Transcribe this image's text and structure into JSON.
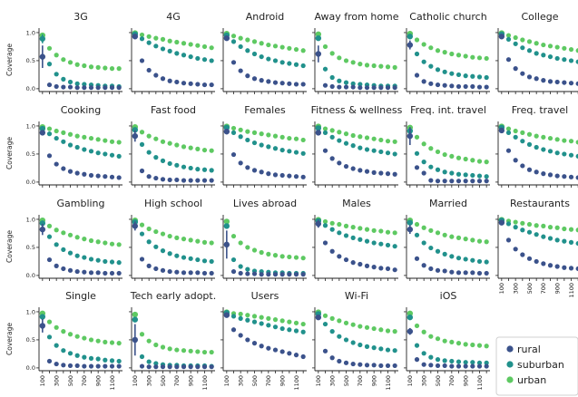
{
  "figure": {
    "legend": {
      "entries": [
        {
          "label": "rural",
          "color": "#3b528b"
        },
        {
          "label": "suburban",
          "color": "#21918c"
        },
        {
          "label": "urban",
          "color": "#5ec962"
        }
      ]
    }
  },
  "chart_data": {
    "type": "scatter",
    "ylabel": "Coverage",
    "x": [
      100,
      200,
      300,
      400,
      500,
      600,
      700,
      800,
      900,
      1000,
      1100,
      1200
    ],
    "xticks": [
      100,
      300,
      500,
      700,
      900,
      1100
    ],
    "yticks": [
      0.0,
      0.5,
      1.0
    ],
    "ylim": [
      -0.05,
      1.08
    ],
    "xlim": [
      50,
      1250
    ],
    "series_names": [
      "rural",
      "suburban",
      "urban"
    ],
    "panels": [
      {
        "title": "3G",
        "rural": [
          0.57,
          0.07,
          0.04,
          0.03,
          0.03,
          0.02,
          0.02,
          0.02,
          0.02,
          0.02,
          0.02,
          0.02
        ],
        "suburban": [
          0.89,
          0.44,
          0.26,
          0.17,
          0.12,
          0.09,
          0.08,
          0.07,
          0.06,
          0.05,
          0.05,
          0.04
        ],
        "urban": [
          0.95,
          0.72,
          0.6,
          0.52,
          0.47,
          0.43,
          0.41,
          0.39,
          0.38,
          0.37,
          0.36,
          0.36
        ],
        "rural_err": 0.2,
        "suburban_err": 0.08
      },
      {
        "title": "4G",
        "rural": [
          0.93,
          0.5,
          0.33,
          0.24,
          0.18,
          0.14,
          0.12,
          0.1,
          0.09,
          0.08,
          0.07,
          0.07
        ],
        "suburban": [
          0.97,
          0.89,
          0.82,
          0.76,
          0.71,
          0.67,
          0.63,
          0.6,
          0.57,
          0.54,
          0.52,
          0.5
        ],
        "urban": [
          0.99,
          0.96,
          0.93,
          0.9,
          0.88,
          0.85,
          0.83,
          0.81,
          0.79,
          0.77,
          0.75,
          0.73
        ]
      },
      {
        "title": "Android",
        "rural": [
          0.9,
          0.47,
          0.32,
          0.23,
          0.18,
          0.15,
          0.13,
          0.11,
          0.1,
          0.09,
          0.08,
          0.08
        ],
        "suburban": [
          0.95,
          0.84,
          0.75,
          0.68,
          0.62,
          0.57,
          0.53,
          0.5,
          0.47,
          0.45,
          0.43,
          0.41
        ],
        "urban": [
          0.98,
          0.94,
          0.9,
          0.87,
          0.84,
          0.81,
          0.78,
          0.76,
          0.74,
          0.72,
          0.7,
          0.68
        ]
      },
      {
        "title": "Away from home",
        "rural": [
          0.62,
          0.06,
          0.04,
          0.03,
          0.03,
          0.03,
          0.02,
          0.02,
          0.02,
          0.02,
          0.02,
          0.02
        ],
        "suburban": [
          0.9,
          0.35,
          0.2,
          0.14,
          0.11,
          0.09,
          0.08,
          0.07,
          0.06,
          0.05,
          0.05,
          0.05
        ],
        "urban": [
          0.97,
          0.75,
          0.63,
          0.55,
          0.5,
          0.47,
          0.44,
          0.42,
          0.41,
          0.4,
          0.39,
          0.38
        ],
        "rural_err": 0.15
      },
      {
        "title": "Catholic church",
        "rural": [
          0.78,
          0.24,
          0.13,
          0.09,
          0.07,
          0.06,
          0.05,
          0.04,
          0.04,
          0.04,
          0.03,
          0.03
        ],
        "suburban": [
          0.93,
          0.62,
          0.48,
          0.4,
          0.34,
          0.3,
          0.27,
          0.25,
          0.23,
          0.22,
          0.21,
          0.2
        ],
        "urban": [
          0.98,
          0.87,
          0.79,
          0.73,
          0.68,
          0.65,
          0.62,
          0.6,
          0.58,
          0.56,
          0.55,
          0.54
        ],
        "rural_err": 0.08
      },
      {
        "title": "College",
        "rural": [
          0.93,
          0.52,
          0.36,
          0.27,
          0.21,
          0.18,
          0.15,
          0.13,
          0.12,
          0.11,
          0.1,
          0.09
        ],
        "suburban": [
          0.97,
          0.88,
          0.8,
          0.73,
          0.68,
          0.63,
          0.6,
          0.57,
          0.54,
          0.52,
          0.5,
          0.48
        ],
        "urban": [
          0.99,
          0.95,
          0.91,
          0.87,
          0.84,
          0.81,
          0.78,
          0.76,
          0.74,
          0.72,
          0.7,
          0.68
        ]
      },
      {
        "title": "Cooking",
        "rural": [
          0.88,
          0.47,
          0.32,
          0.24,
          0.19,
          0.16,
          0.14,
          0.12,
          0.11,
          0.1,
          0.09,
          0.08
        ],
        "suburban": [
          0.95,
          0.86,
          0.78,
          0.72,
          0.66,
          0.62,
          0.58,
          0.55,
          0.52,
          0.5,
          0.48,
          0.46
        ],
        "urban": [
          0.98,
          0.95,
          0.91,
          0.88,
          0.85,
          0.82,
          0.8,
          0.78,
          0.76,
          0.74,
          0.72,
          0.71
        ],
        "rural_err": 0.04
      },
      {
        "title": "Fast food",
        "rural": [
          0.82,
          0.2,
          0.1,
          0.07,
          0.05,
          0.04,
          0.04,
          0.03,
          0.03,
          0.03,
          0.03,
          0.03
        ],
        "suburban": [
          0.93,
          0.67,
          0.53,
          0.44,
          0.38,
          0.33,
          0.3,
          0.27,
          0.25,
          0.23,
          0.22,
          0.21
        ],
        "urban": [
          0.98,
          0.89,
          0.82,
          0.77,
          0.72,
          0.69,
          0.66,
          0.63,
          0.61,
          0.59,
          0.57,
          0.56
        ],
        "rural_err": 0.1
      },
      {
        "title": "Females",
        "rural": [
          0.9,
          0.49,
          0.34,
          0.26,
          0.21,
          0.18,
          0.15,
          0.13,
          0.12,
          0.11,
          0.1,
          0.09
        ],
        "suburban": [
          0.97,
          0.88,
          0.81,
          0.75,
          0.7,
          0.66,
          0.63,
          0.6,
          0.57,
          0.55,
          0.53,
          0.51
        ],
        "urban": [
          0.99,
          0.96,
          0.93,
          0.9,
          0.88,
          0.86,
          0.84,
          0.82,
          0.8,
          0.78,
          0.77,
          0.75
        ],
        "rural_err": 0.05
      },
      {
        "title": "Fitness & wellness",
        "rural": [
          0.88,
          0.56,
          0.42,
          0.34,
          0.28,
          0.24,
          0.21,
          0.19,
          0.17,
          0.16,
          0.15,
          0.14
        ],
        "suburban": [
          0.96,
          0.88,
          0.8,
          0.74,
          0.69,
          0.65,
          0.61,
          0.58,
          0.56,
          0.54,
          0.52,
          0.5
        ],
        "urban": [
          0.99,
          0.95,
          0.92,
          0.89,
          0.86,
          0.83,
          0.81,
          0.79,
          0.77,
          0.75,
          0.73,
          0.72
        ],
        "rural_err": 0.05
      },
      {
        "title": "Freq. int. travel",
        "rural": [
          0.82,
          0.26,
          0.16,
          0.03,
          0.02,
          0.02,
          0.02,
          0.02,
          0.02,
          0.02,
          0.02,
          0.02
        ],
        "suburban": [
          0.91,
          0.51,
          0.36,
          0.27,
          0.22,
          0.18,
          0.16,
          0.14,
          0.13,
          0.12,
          0.11,
          0.1
        ],
        "urban": [
          0.97,
          0.8,
          0.68,
          0.6,
          0.54,
          0.49,
          0.46,
          0.43,
          0.41,
          0.39,
          0.37,
          0.36
        ],
        "rural_err": 0.16
      },
      {
        "title": "Freq. travel",
        "rural": [
          0.92,
          0.56,
          0.39,
          0.29,
          0.22,
          0.18,
          0.15,
          0.13,
          0.11,
          0.1,
          0.09,
          0.08
        ],
        "suburban": [
          0.97,
          0.88,
          0.8,
          0.73,
          0.67,
          0.62,
          0.58,
          0.55,
          0.52,
          0.5,
          0.48,
          0.46
        ],
        "urban": [
          0.99,
          0.95,
          0.91,
          0.88,
          0.85,
          0.82,
          0.8,
          0.78,
          0.76,
          0.74,
          0.73,
          0.71
        ]
      },
      {
        "title": "Gambling",
        "rural": [
          0.82,
          0.28,
          0.17,
          0.12,
          0.09,
          0.07,
          0.06,
          0.05,
          0.05,
          0.04,
          0.04,
          0.04
        ],
        "suburban": [
          0.93,
          0.69,
          0.55,
          0.46,
          0.4,
          0.35,
          0.32,
          0.29,
          0.27,
          0.25,
          0.24,
          0.23
        ],
        "urban": [
          0.98,
          0.88,
          0.81,
          0.76,
          0.72,
          0.68,
          0.65,
          0.62,
          0.6,
          0.58,
          0.56,
          0.55
        ],
        "rural_err": 0.1
      },
      {
        "title": "High school",
        "rural": [
          0.88,
          0.29,
          0.17,
          0.12,
          0.09,
          0.07,
          0.06,
          0.05,
          0.05,
          0.05,
          0.04,
          0.04
        ],
        "suburban": [
          0.95,
          0.74,
          0.6,
          0.51,
          0.44,
          0.39,
          0.35,
          0.32,
          0.3,
          0.28,
          0.26,
          0.25
        ],
        "urban": [
          0.98,
          0.9,
          0.83,
          0.78,
          0.74,
          0.7,
          0.67,
          0.65,
          0.63,
          0.61,
          0.59,
          0.58
        ],
        "rural_err": 0.08
      },
      {
        "title": "Lives abroad",
        "rural": [
          0.55,
          0.07,
          0.04,
          0.03,
          0.03,
          0.02,
          0.02,
          0.02,
          0.02,
          0.02,
          0.02,
          0.02
        ],
        "suburban": [
          0.88,
          0.28,
          0.16,
          0.11,
          0.08,
          0.07,
          0.06,
          0.05,
          0.05,
          0.04,
          0.04,
          0.04
        ],
        "urban": [
          0.96,
          0.7,
          0.58,
          0.5,
          0.45,
          0.41,
          0.38,
          0.36,
          0.34,
          0.33,
          0.32,
          0.31
        ],
        "rural_err": 0.25
      },
      {
        "title": "Males",
        "rural": [
          0.92,
          0.58,
          0.43,
          0.34,
          0.28,
          0.23,
          0.2,
          0.17,
          0.15,
          0.13,
          0.12,
          0.1
        ],
        "suburban": [
          0.97,
          0.89,
          0.82,
          0.76,
          0.71,
          0.67,
          0.64,
          0.61,
          0.58,
          0.56,
          0.54,
          0.52
        ],
        "urban": [
          0.99,
          0.96,
          0.93,
          0.91,
          0.88,
          0.86,
          0.84,
          0.82,
          0.8,
          0.79,
          0.77,
          0.76
        ],
        "rural_err": 0.07
      },
      {
        "title": "Married",
        "rural": [
          0.82,
          0.3,
          0.18,
          0.12,
          0.09,
          0.08,
          0.06,
          0.05,
          0.05,
          0.05,
          0.04,
          0.04
        ],
        "suburban": [
          0.94,
          0.72,
          0.58,
          0.49,
          0.43,
          0.38,
          0.34,
          0.31,
          0.29,
          0.27,
          0.25,
          0.24
        ],
        "urban": [
          0.98,
          0.91,
          0.85,
          0.8,
          0.76,
          0.72,
          0.69,
          0.67,
          0.65,
          0.63,
          0.61,
          0.6
        ],
        "rural_err": 0.08
      },
      {
        "title": "Restaurants",
        "rural": [
          0.94,
          0.63,
          0.47,
          0.37,
          0.3,
          0.25,
          0.21,
          0.18,
          0.16,
          0.14,
          0.13,
          0.12
        ],
        "suburban": [
          0.98,
          0.92,
          0.86,
          0.81,
          0.77,
          0.73,
          0.69,
          0.66,
          0.63,
          0.61,
          0.59,
          0.57
        ],
        "urban": [
          0.99,
          0.97,
          0.95,
          0.93,
          0.91,
          0.89,
          0.88,
          0.86,
          0.85,
          0.83,
          0.82,
          0.81
        ]
      },
      {
        "title": "Single",
        "rural": [
          0.75,
          0.12,
          0.07,
          0.05,
          0.04,
          0.04,
          0.03,
          0.03,
          0.03,
          0.03,
          0.03,
          0.03
        ],
        "suburban": [
          0.91,
          0.55,
          0.4,
          0.31,
          0.26,
          0.22,
          0.19,
          0.17,
          0.16,
          0.14,
          0.13,
          0.12
        ],
        "urban": [
          0.97,
          0.82,
          0.72,
          0.65,
          0.6,
          0.56,
          0.53,
          0.5,
          0.48,
          0.46,
          0.45,
          0.44
        ],
        "rural_err": 0.12
      },
      {
        "title": "Tech early adopt.",
        "rural": [
          0.5,
          0.03,
          0.02,
          0.02,
          0.02,
          0.02,
          0.02,
          0.02,
          0.02,
          0.02,
          0.02,
          0.02
        ],
        "suburban": [
          0.86,
          0.2,
          0.11,
          0.08,
          0.06,
          0.05,
          0.05,
          0.04,
          0.04,
          0.04,
          0.04,
          0.03
        ],
        "urban": [
          0.95,
          0.6,
          0.48,
          0.41,
          0.37,
          0.34,
          0.32,
          0.31,
          0.3,
          0.29,
          0.28,
          0.28
        ],
        "rural_err": 0.28
      },
      {
        "title": "Users",
        "rural": [
          0.94,
          0.68,
          0.58,
          0.5,
          0.44,
          0.39,
          0.35,
          0.32,
          0.29,
          0.26,
          0.23,
          0.2
        ],
        "suburban": [
          0.98,
          0.92,
          0.88,
          0.85,
          0.82,
          0.79,
          0.76,
          0.73,
          0.7,
          0.68,
          0.66,
          0.64
        ],
        "urban": [
          0.99,
          0.97,
          0.96,
          0.94,
          0.92,
          0.9,
          0.88,
          0.86,
          0.84,
          0.82,
          0.8,
          0.78
        ]
      },
      {
        "title": "Wi-Fi",
        "rural": [
          0.9,
          0.3,
          0.18,
          0.12,
          0.09,
          0.07,
          0.06,
          0.05,
          0.05,
          0.04,
          0.04,
          0.04
        ],
        "suburban": [
          0.96,
          0.78,
          0.65,
          0.56,
          0.5,
          0.45,
          0.41,
          0.38,
          0.36,
          0.34,
          0.32,
          0.31
        ],
        "urban": [
          0.99,
          0.93,
          0.88,
          0.84,
          0.8,
          0.77,
          0.74,
          0.72,
          0.7,
          0.68,
          0.66,
          0.65
        ]
      },
      {
        "title": "iOS",
        "rural": [
          0.65,
          0.15,
          0.06,
          0.05,
          0.04,
          0.04,
          0.03,
          0.03,
          0.03,
          0.03,
          0.03,
          0.03
        ],
        "suburban": [
          0.9,
          0.4,
          0.26,
          0.19,
          0.15,
          0.13,
          0.12,
          0.11,
          0.1,
          0.1,
          0.09,
          0.09
        ],
        "urban": [
          0.97,
          0.75,
          0.64,
          0.56,
          0.52,
          0.48,
          0.46,
          0.44,
          0.42,
          0.41,
          0.4,
          0.39
        ],
        "rural_err": 0.06
      }
    ]
  }
}
